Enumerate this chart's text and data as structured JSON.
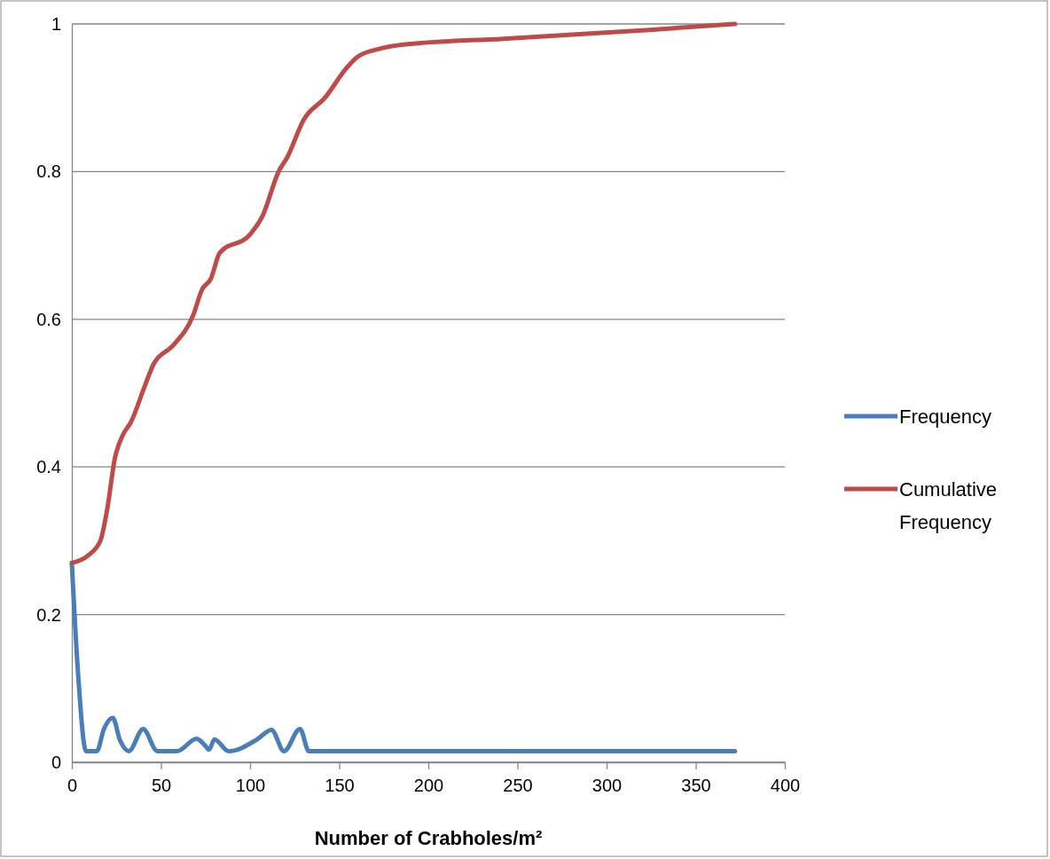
{
  "chart_data": {
    "type": "line",
    "xlabel": "Number of Crabholes/m²",
    "xlim": [
      0,
      400
    ],
    "xticks": [
      0,
      50,
      100,
      150,
      200,
      250,
      300,
      350,
      400
    ],
    "ylim": [
      0,
      1
    ],
    "yticks": [
      0,
      0.2,
      0.4,
      0.6,
      0.8,
      1
    ],
    "grid": "y",
    "legend": "right",
    "line_style": "solid",
    "marker": "none",
    "series": [
      {
        "name": "Frequency",
        "color": "#4a7ebb",
        "x": [
          0,
          3.5,
          8,
          11,
          14,
          18,
          23,
          27,
          32,
          40,
          48,
          59,
          70,
          75,
          77,
          80,
          88,
          104,
          112,
          119,
          128,
          133,
          141,
          372
        ],
        "values": [
          0.27,
          0.12,
          0.015,
          0.015,
          0.015,
          0.045,
          0.06,
          0.03,
          0.015,
          0.045,
          0.015,
          0.015,
          0.032,
          0.022,
          0.017,
          0.031,
          0.015,
          0.031,
          0.044,
          0.015,
          0.045,
          0.015,
          0.015,
          0.015
        ]
      },
      {
        "name": "Cumulative Frequency",
        "color": "#be4b48",
        "x": [
          0,
          9,
          16,
          20,
          24,
          29,
          33,
          41,
          46,
          57,
          68,
          73,
          78,
          83,
          100,
          107,
          116,
          121,
          130,
          142,
          154,
          160,
          172,
          186,
          242,
          291,
          324,
          372
        ],
        "values": [
          0.27,
          0.28,
          0.3,
          0.345,
          0.41,
          0.445,
          0.46,
          0.51,
          0.54,
          0.565,
          0.605,
          0.64,
          0.655,
          0.69,
          0.715,
          0.74,
          0.8,
          0.82,
          0.87,
          0.9,
          0.94,
          0.955,
          0.966,
          0.972,
          0.98,
          0.987,
          0.992,
          1
        ]
      }
    ]
  }
}
